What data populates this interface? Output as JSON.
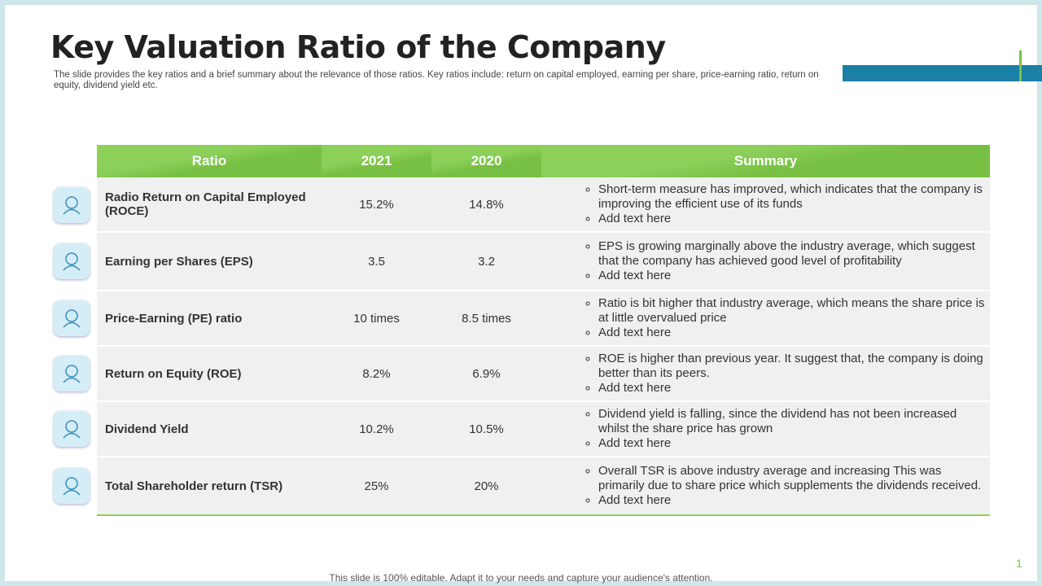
{
  "header": {
    "title": "Key Valuation Ratio of the Company",
    "subtitle": "The slide provides the key ratios and a brief summary about the relevance of those ratios. Key ratios include: return on capital employed, earning per share, price-earning ratio, return on equity, dividend yield etc."
  },
  "table": {
    "columns": [
      "Ratio",
      "2021",
      "2020",
      "Summary"
    ],
    "rows": [
      [
        "Radio Return on Capital Employed (ROCE)",
        "15.2%",
        "14.8%",
        [
          "Short-term measure has improved, which indicates that the company is improving the efficient use of its funds",
          "Add text here"
        ]
      ],
      [
        "Earning per Shares (EPS)",
        "3.5",
        "3.2",
        [
          "EPS is growing marginally above the industry average, which suggest that the company has achieved good level of profitability",
          "Add text here"
        ]
      ],
      [
        "Price-Earning (PE) ratio",
        "10 times",
        "8.5 times",
        [
          "Ratio is bit higher that industry average, which means the share price is at little overvalued price",
          "Add text here"
        ]
      ],
      [
        "Return on Equity (ROE)",
        "8.2%",
        "6.9%",
        [
          "ROE is higher than previous year. It suggest that, the company is doing better than its peers.",
          "Add text here"
        ]
      ],
      [
        "Dividend Yield",
        "10.2%",
        "10.5%",
        [
          "Dividend yield is falling, since the dividend has not been increased whilst the share price has grown",
          "Add text here"
        ]
      ],
      [
        "Total Shareholder return (TSR)",
        "25%",
        "20%",
        [
          "Overall TSR is above industry average and increasing This was primarily due to share price which supplements the dividends received.",
          "Add text here"
        ]
      ]
    ]
  },
  "footer": {
    "note": "This slide is 100% editable. Adapt it to your needs and capture your audience's attention.",
    "page_number": "1"
  }
}
